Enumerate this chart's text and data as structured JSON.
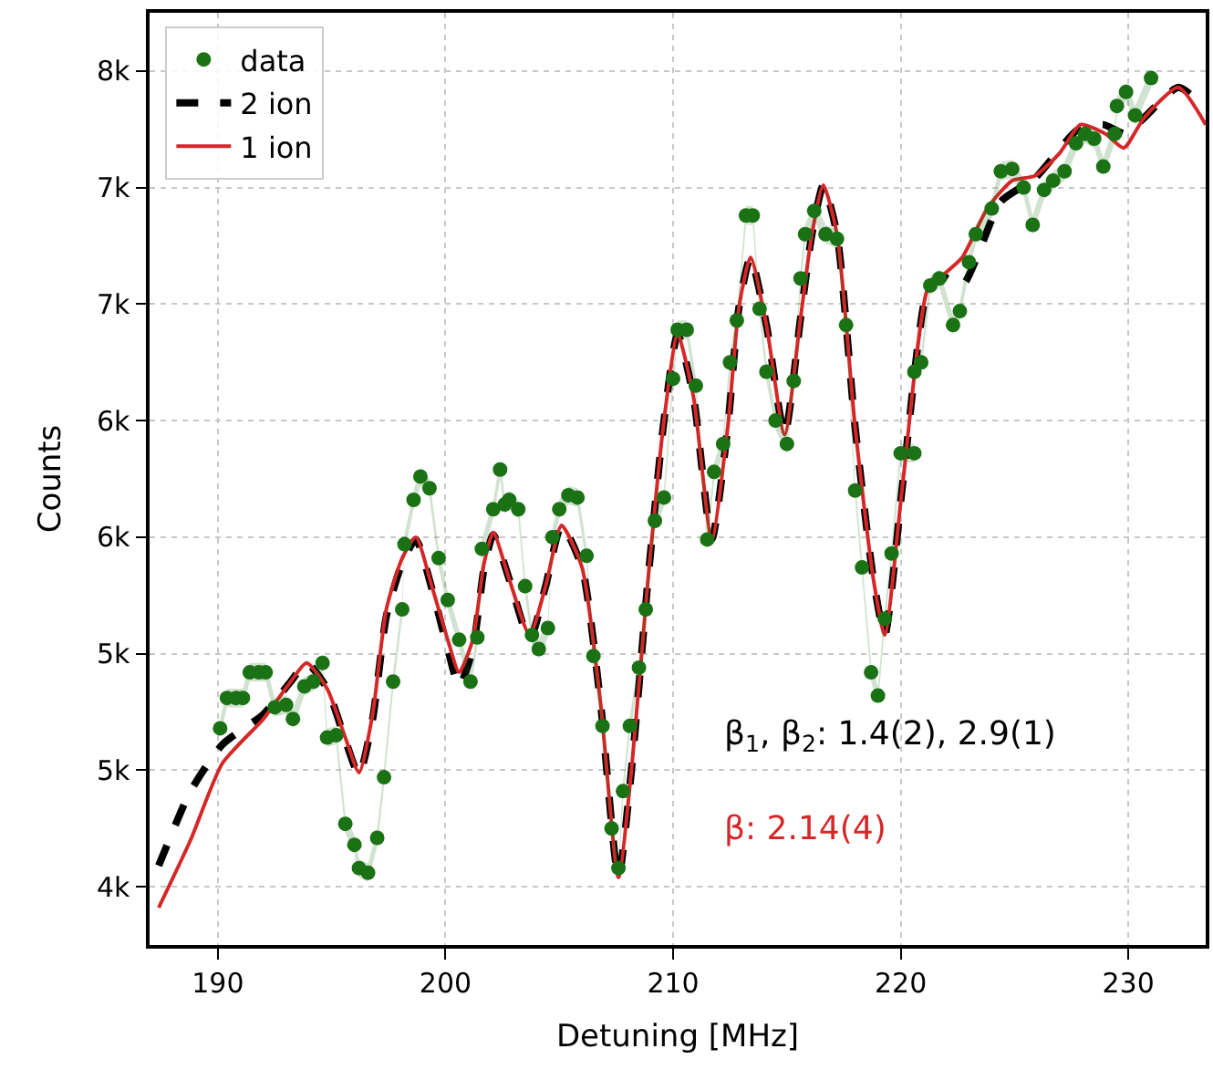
{
  "chart_data": {
    "type": "scatter",
    "xlabel": "Detuning [MHz]",
    "ylabel": "Counts",
    "xlim": [
      187,
      233.4
    ],
    "xticks": [
      190,
      200,
      210,
      220,
      230
    ],
    "ylim": [
      4000,
      8000
    ],
    "yticks": [
      {
        "value": 4250,
        "label": "4k"
      },
      {
        "value": 4750,
        "label": "5k"
      },
      {
        "value": 5250,
        "label": "5k"
      },
      {
        "value": 5750,
        "label": "6k"
      },
      {
        "value": 6250,
        "label": "6k"
      },
      {
        "value": 6750,
        "label": "7k"
      },
      {
        "value": 7250,
        "label": "7k"
      },
      {
        "value": 7750,
        "label": "8k"
      }
    ],
    "grid": true,
    "legend": "top left",
    "annotations": [
      "β$_{1}$, β$_{2}$: 1.4(2), 2.9(1)",
      "β: 2.14(4)"
    ],
    "series": [
      {
        "name": "data",
        "type": "scatter",
        "marker": "circle",
        "color": "#1a7214",
        "x": [
          190.1,
          190.4,
          190.8,
          191.1,
          191.4,
          191.8,
          192.1,
          192.5,
          193.0,
          193.3,
          193.8,
          194.2,
          194.6,
          194.8,
          195.2,
          195.6,
          196.0,
          196.2,
          196.6,
          197.0,
          197.3,
          197.7,
          198.1,
          198.2,
          198.6,
          198.9,
          199.3,
          199.7,
          200.1,
          200.6,
          201.1,
          201.4,
          201.6,
          202.1,
          202.4,
          202.6,
          202.8,
          203.2,
          203.5,
          203.8,
          204.1,
          204.5,
          204.7,
          205.0,
          205.4,
          205.8,
          206.2,
          206.5,
          206.9,
          207.3,
          207.6,
          207.8,
          208.1,
          208.5,
          208.8,
          209.2,
          209.6,
          210.0,
          210.2,
          210.6,
          211.0,
          211.5,
          211.8,
          212.2,
          212.5,
          212.8,
          213.2,
          213.5,
          213.8,
          214.1,
          214.5,
          215.0,
          215.3,
          215.6,
          215.8,
          216.2,
          216.7,
          217.2,
          217.6,
          218.0,
          218.3,
          218.7,
          219.0,
          219.3,
          219.6,
          220.0,
          220.6,
          220.6,
          220.9,
          221.3,
          221.7,
          222.3,
          222.6,
          223.0,
          223.3,
          224.0,
          224.4,
          224.9,
          225.4,
          225.8,
          226.3,
          226.7,
          227.2,
          227.7,
          228.1,
          228.5,
          228.9,
          229.4,
          229.5,
          229.9,
          230.3,
          231.0
        ],
        "values": [
          4930,
          5060,
          5060,
          5060,
          5170,
          5170,
          5170,
          5020,
          5030,
          4970,
          5110,
          5130,
          5210,
          4890,
          4900,
          4520,
          4430,
          4330,
          4310,
          4460,
          4720,
          5130,
          5440,
          5720,
          5910,
          6010,
          5960,
          5660,
          5480,
          5310,
          5130,
          5320,
          5700,
          5870,
          6040,
          5890,
          5910,
          5870,
          5540,
          5330,
          5270,
          5360,
          5750,
          5870,
          5930,
          5920,
          5670,
          5240,
          4940,
          4500,
          4330,
          4660,
          4940,
          5190,
          5440,
          5820,
          5920,
          6430,
          6640,
          6640,
          6400,
          5740,
          6030,
          6150,
          6500,
          6680,
          7130,
          7130,
          6730,
          6460,
          6250,
          6150,
          6420,
          6860,
          7050,
          7150,
          7050,
          7030,
          6660,
          5950,
          5620,
          5170,
          5070,
          5400,
          5680,
          6110,
          6110,
          6460,
          6500,
          6830,
          6860,
          6660,
          6720,
          6930,
          7050,
          7160,
          7320,
          7330,
          7250,
          7090,
          7240,
          7280,
          7320,
          7440,
          7480,
          7460,
          7340,
          7480,
          7600,
          7660,
          7560,
          7720
        ],
        "lower": [
          4890,
          5020,
          5020,
          5020,
          5130,
          5130,
          5130,
          4980,
          4990,
          4930,
          5070,
          5090,
          5170,
          4850,
          4860,
          4480,
          4390,
          4290,
          4270,
          4420,
          4680,
          5090,
          5400,
          5680,
          5870,
          5970,
          5920,
          5620,
          5440,
          5270,
          5090,
          5280,
          5660,
          5830,
          6000,
          5850,
          5870,
          5830,
          5500,
          5290,
          5230,
          5320,
          5710,
          5830,
          5890,
          5880,
          5630,
          5200,
          4900,
          4460,
          4290,
          4620,
          4900,
          5150,
          5400,
          5780,
          5880,
          6390,
          6600,
          6600,
          6360,
          5700,
          5990,
          6110,
          6460,
          6640,
          7090,
          7090,
          6690,
          6420,
          6210,
          6110,
          6380,
          6820,
          7010,
          7110,
          7010,
          6990,
          6620,
          5910,
          5580,
          5130,
          5030,
          5360,
          5640,
          6070,
          6070,
          6420,
          6460,
          6790,
          6820,
          6620,
          6680,
          6890,
          7010,
          7120,
          7280,
          7290,
          7210,
          7050,
          7200,
          7240,
          7280,
          7400,
          7440,
          7420,
          7300,
          7440,
          7560,
          7620,
          7520,
          7680
        ],
        "upper": [
          4970,
          5100,
          5100,
          5100,
          5210,
          5210,
          5210,
          5060,
          5070,
          5010,
          5150,
          5170,
          5250,
          4930,
          4940,
          4560,
          4470,
          4370,
          4350,
          4500,
          4760,
          5170,
          5480,
          5760,
          5950,
          6050,
          6000,
          5700,
          5520,
          5350,
          5170,
          5360,
          5740,
          5910,
          6080,
          5930,
          5950,
          5910,
          5580,
          5370,
          5310,
          5400,
          5790,
          5910,
          5970,
          5960,
          5710,
          5280,
          4980,
          4540,
          4370,
          4700,
          4980,
          5230,
          5480,
          5860,
          5960,
          6470,
          6680,
          6680,
          6440,
          5780,
          6070,
          6190,
          6540,
          6720,
          7170,
          7170,
          6770,
          6500,
          6290,
          6190,
          6460,
          6900,
          7090,
          7190,
          7090,
          7070,
          6700,
          5990,
          5660,
          5210,
          5110,
          5440,
          5720,
          6150,
          6150,
          6500,
          6540,
          6870,
          6900,
          6700,
          6760,
          6970,
          7090,
          7200,
          7360,
          7370,
          7290,
          7130,
          7280,
          7320,
          7360,
          7480,
          7520,
          7500,
          7380,
          7520,
          7640,
          7700,
          7600,
          7760
        ]
      },
      {
        "name": "2 ion",
        "type": "line",
        "marker": "none",
        "line_style": "dashed",
        "color": "#000000",
        "x": [
          187.4,
          188.8,
          190.2,
          192.0,
          193.2,
          193.9,
          194.8,
          195.6,
          196.2,
          196.8,
          197.4,
          198.1,
          198.7,
          199.4,
          200.1,
          200.6,
          201.2,
          201.7,
          202.1,
          202.8,
          203.7,
          204.4,
          205.1,
          206.0,
          206.8,
          207.6,
          208.2,
          208.9,
          209.6,
          210.2,
          210.9,
          211.7,
          212.4,
          212.9,
          213.4,
          214.1,
          214.9,
          215.6,
          216.1,
          216.6,
          217.2,
          218.0,
          218.8,
          219.3,
          220.1,
          221.2,
          221.8,
          222.7,
          224.4,
          225.9,
          227.8,
          228.9,
          229.9,
          230.7,
          232.2,
          233.4
        ],
        "values": [
          4340,
          4660,
          4860,
          4990,
          5130,
          5210,
          5100,
          4880,
          4730,
          4970,
          5410,
          5640,
          5740,
          5530,
          5270,
          5110,
          5270,
          5620,
          5760,
          5570,
          5310,
          5540,
          5800,
          5620,
          5050,
          4290,
          4780,
          5570,
          6250,
          6620,
          6350,
          5740,
          6220,
          6740,
          6950,
          6660,
          6190,
          6690,
          7050,
          7260,
          7050,
          6220,
          5570,
          5330,
          5990,
          6820,
          6870,
          6830,
          7190,
          7290,
          7500,
          7520,
          7480,
          7550,
          7680,
          7590
        ]
      },
      {
        "name": "1 ion",
        "type": "line",
        "marker": "none",
        "line_style": "solid",
        "color": "#d62728",
        "x": [
          187.4,
          188.8,
          190.2,
          192.0,
          193.2,
          193.9,
          194.8,
          195.6,
          196.2,
          196.8,
          197.4,
          198.1,
          198.7,
          199.4,
          200.1,
          200.6,
          201.2,
          201.7,
          202.1,
          202.8,
          203.7,
          204.4,
          205.1,
          206.0,
          206.8,
          207.6,
          208.2,
          208.9,
          209.6,
          210.2,
          210.9,
          211.7,
          212.4,
          212.9,
          213.4,
          214.1,
          214.9,
          215.6,
          216.1,
          216.6,
          217.2,
          218.0,
          218.8,
          219.3,
          220.1,
          221.2,
          221.8,
          222.7,
          223.8,
          224.9,
          225.9,
          227.0,
          227.9,
          229.0,
          229.8,
          230.7,
          232.2,
          233.4
        ],
        "values": [
          4160,
          4450,
          4780,
          4970,
          5130,
          5210,
          5100,
          4890,
          4740,
          4990,
          5440,
          5660,
          5750,
          5540,
          5310,
          5170,
          5310,
          5640,
          5770,
          5570,
          5330,
          5540,
          5800,
          5620,
          5050,
          4290,
          4780,
          5570,
          6250,
          6620,
          6350,
          5740,
          6220,
          6740,
          6950,
          6660,
          6190,
          6690,
          7050,
          7260,
          7050,
          6220,
          5570,
          5330,
          5990,
          6820,
          6870,
          6950,
          7160,
          7280,
          7300,
          7400,
          7520,
          7480,
          7420,
          7550,
          7680,
          7520
        ]
      }
    ]
  }
}
